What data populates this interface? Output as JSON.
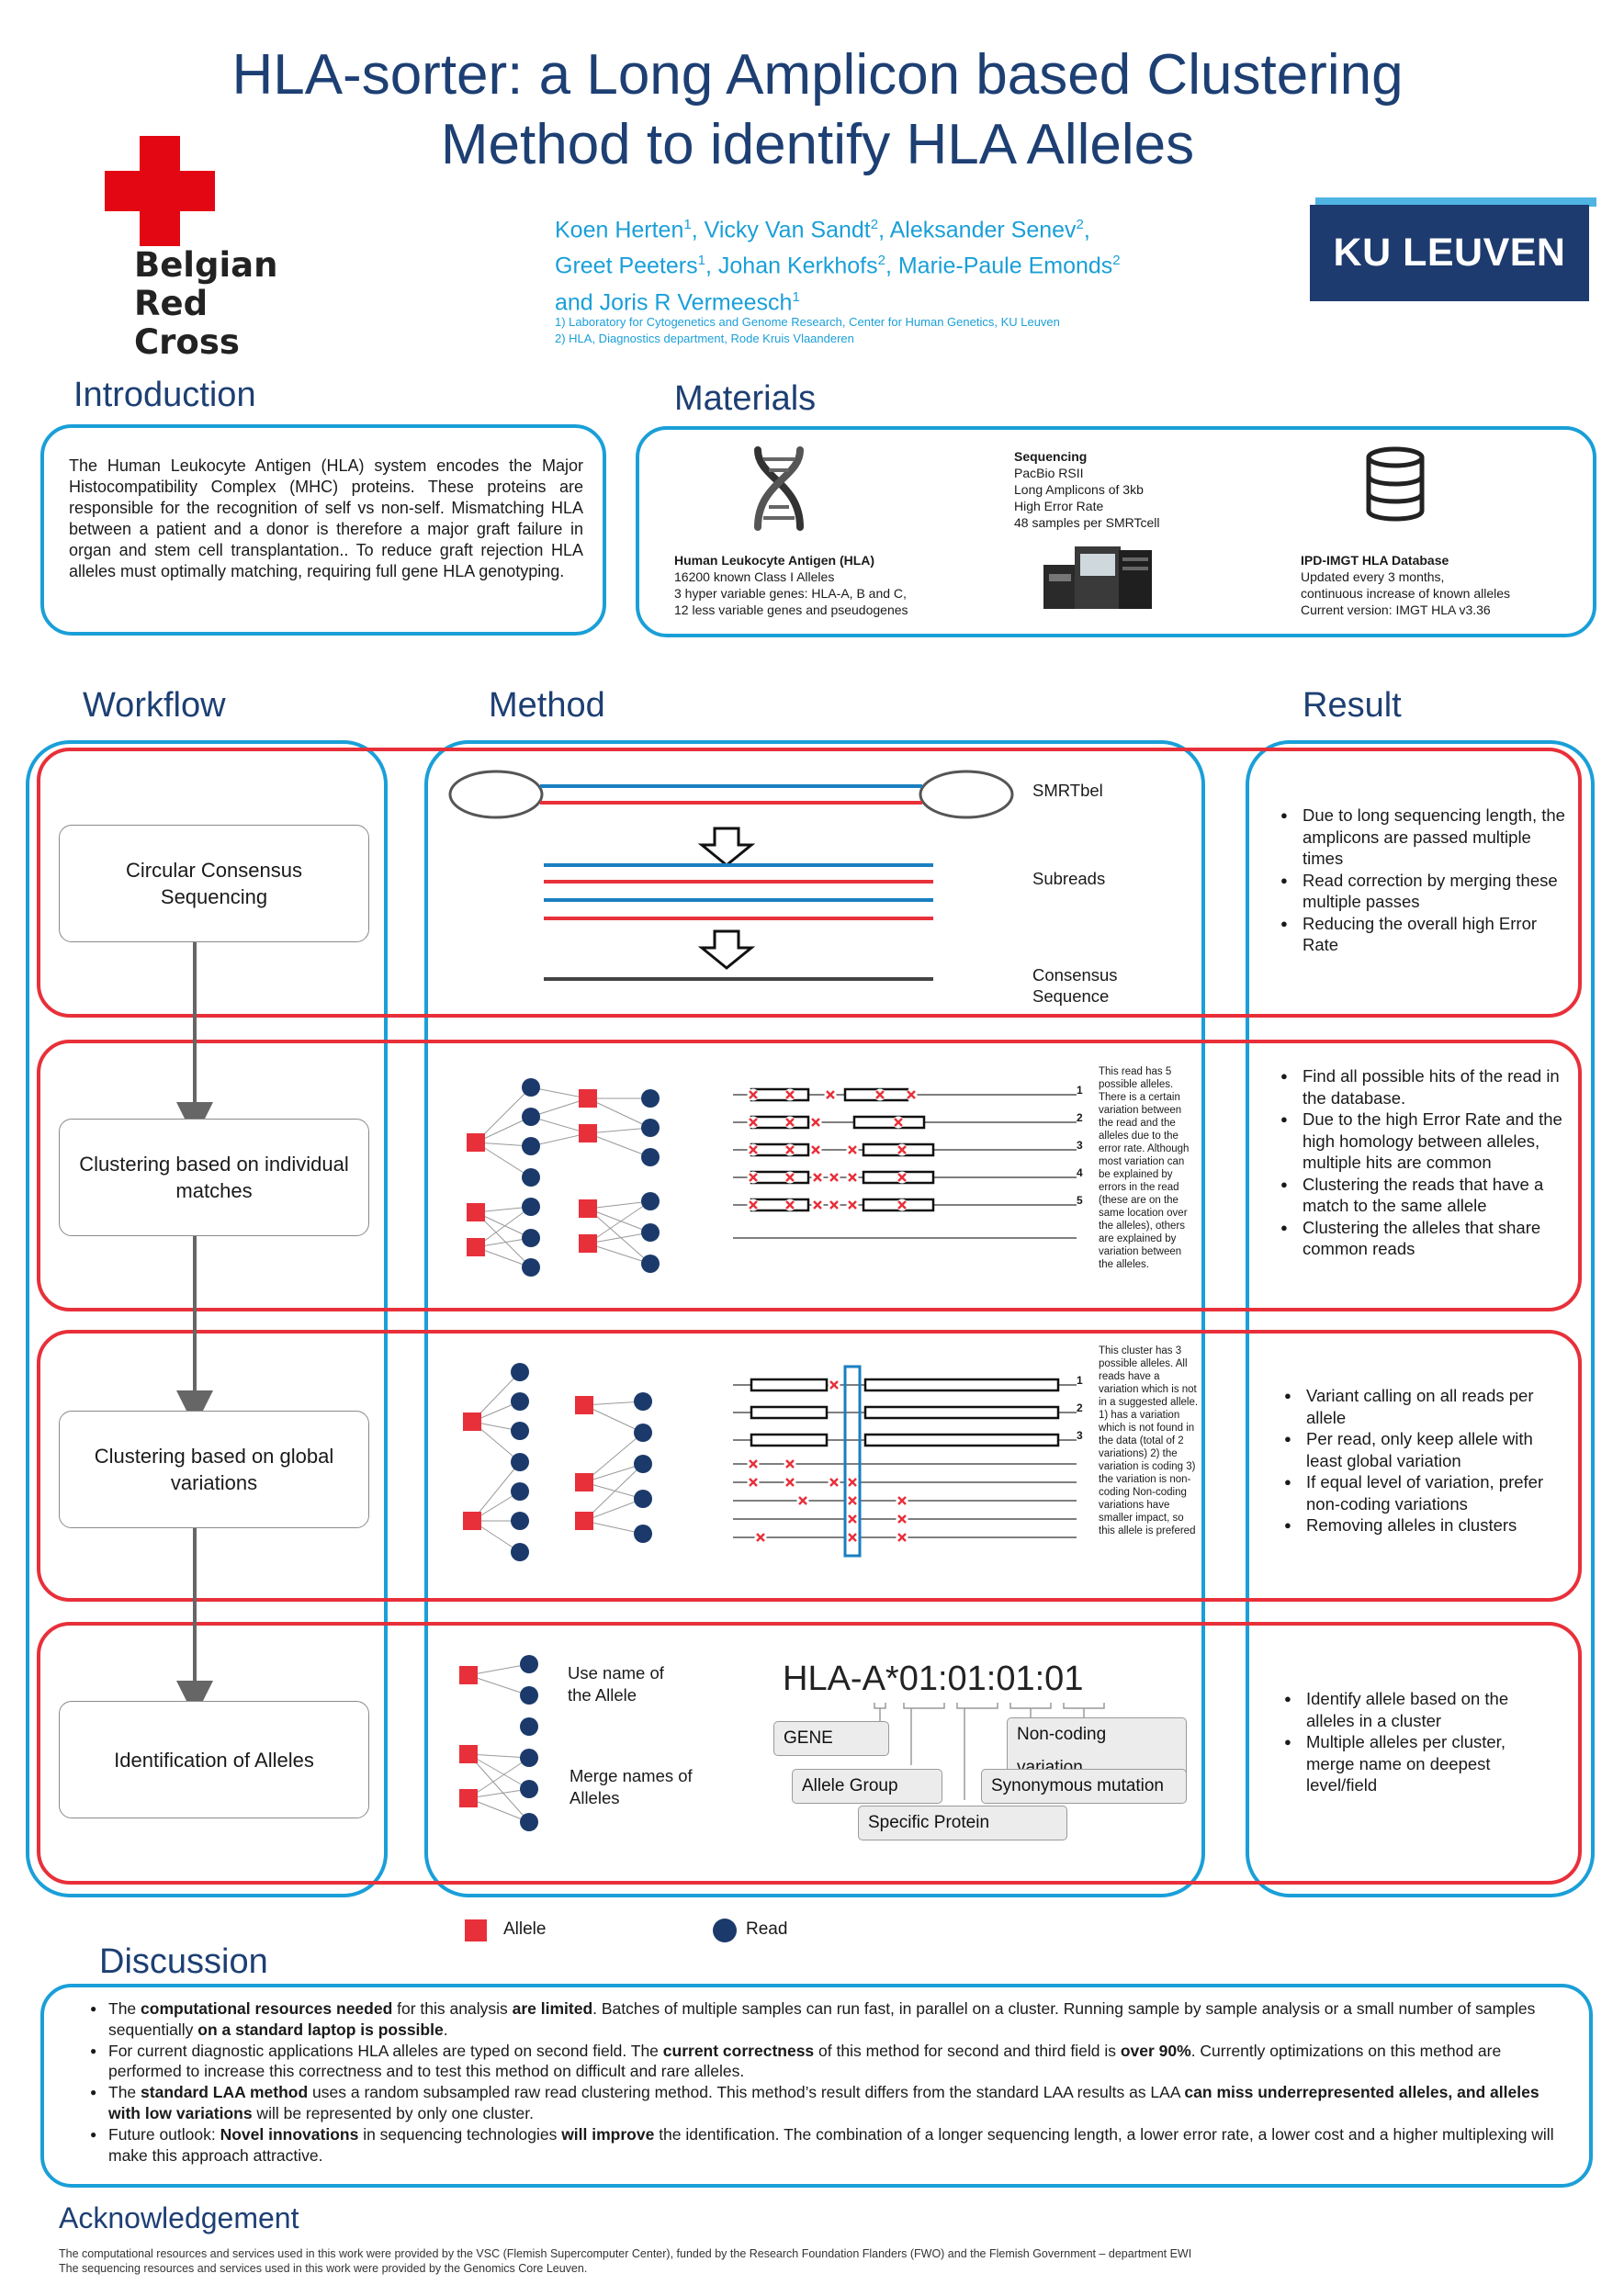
{
  "header": {
    "title_line1": "HLA-sorter: a Long Amplicon based Clustering",
    "title_line2": "Method to identify HLA Alleles",
    "authors": [
      {
        "name": "Koen Herten",
        "aff": "1",
        "sep": ", "
      },
      {
        "name": "Vicky Van Sandt",
        "aff": "2",
        "sep": ", "
      },
      {
        "name": "Aleksander Senev",
        "aff": "2",
        "sep": ","
      },
      {
        "name": "Greet Peeters",
        "aff": "1",
        "sep": ", "
      },
      {
        "name": "Johan Kerkhofs",
        "aff": "2",
        "sep": ", "
      },
      {
        "name": "Marie-Paule Emonds",
        "aff": "2",
        "sep": ""
      },
      {
        "name": "and Joris R Vermeesch",
        "aff": "1",
        "sep": ""
      }
    ],
    "affiliation_1": "1) Laboratory for Cytogenetics and Genome Research, Center for Human Genetics, KU Leuven",
    "affiliation_2": "2) HLA, Diagnostics department, Rode Kruis Vlaanderen",
    "logo_left_line1": "Belgian",
    "logo_left_line2": "Red Cross",
    "logo_right": "KU LEUVEN"
  },
  "introduction": {
    "heading": "Introduction",
    "text": "The Human Leukocyte Antigen (HLA) system encodes the Major Histocompatibility Complex (MHC) proteins. These proteins are responsible for the recognition of self vs non-self. Mismatching HLA between a patient and a donor is therefore a major graft failure in organ and stem cell transplantation.. To reduce graft rejection HLA alleles must optimally matching, requiring full gene HLA genotyping."
  },
  "materials": {
    "heading": "Materials",
    "hla": {
      "title": "Human Leukocyte Antigen (HLA)",
      "lines": [
        "16200 known Class I Alleles",
        "3 hyper variable genes: HLA-A, B and C,",
        "12 less variable genes and pseudogenes"
      ]
    },
    "sequencing": {
      "title": "Sequencing",
      "lines": [
        "PacBio RSII",
        "Long Amplicons of 3kb",
        "High Error Rate",
        "48 samples per SMRTcell"
      ]
    },
    "database": {
      "title": "IPD-IMGT HLA Database",
      "lines": [
        "Updated every 3 months,",
        "continuous increase of known alleles",
        "Current version: IMGT HLA v3.36"
      ]
    }
  },
  "section_headings": {
    "workflow": "Workflow",
    "method": "Method",
    "result": "Result"
  },
  "workflow": {
    "steps": [
      "Circular Consensus Sequencing",
      "Clustering based on individual matches",
      "Clustering based on global variations",
      "Identification of Alleles"
    ]
  },
  "method": {
    "ccs_labels": {
      "smrtbell": "SMRTbel",
      "subreads": "Subreads",
      "consensus": "Consensus Sequence"
    },
    "row_numbers": [
      "1",
      "2",
      "3",
      "4",
      "5"
    ],
    "row_numbers_global": [
      "1",
      "2",
      "3"
    ],
    "note_individual": "This read has 5 possible alleles. There is a certain variation between the read and the alleles due to the error rate. Although most variation can be explained by errors in the read (these are on the same location over the alleles), others are explained by variation between the alleles.",
    "note_global": "This cluster has 3 possible alleles. All reads have a variation which is not in a suggested allele. 1) has a variation which is not found in the data (total of 2 variations) 2) the variation is coding 3) the variation is non-coding Non-coding variations have smaller impact, so this allele is prefered",
    "identification": {
      "use_name": "Use name of the Allele",
      "merge_names": "Merge names of Alleles",
      "allele_name": "HLA-A*01:01:01:01",
      "parts": {
        "gene": "GENE",
        "allele_group": "Allele Group",
        "specific_protein": "Specific Protein",
        "non_coding": "Non-coding variation",
        "synonymous": "Synonymous mutation"
      }
    },
    "legend": {
      "allele": "Allele",
      "read": "Read"
    }
  },
  "results": [
    [
      "Due to long sequencing length, the amplicons are passed multiple times",
      "Read correction by merging these multiple passes",
      "Reducing the overall high Error Rate"
    ],
    [
      "Find all possible hits of the read in the database.",
      "Due to the high Error Rate and the high homology between alleles, multiple hits are common",
      "Clustering the reads that have a match to the same allele",
      "Clustering the alleles that share common reads"
    ],
    [
      "Variant calling on all reads per allele",
      "Per read, only keep allele with least global variation",
      "If equal level of variation, prefer non-coding variations",
      "Removing alleles in clusters"
    ],
    [
      "Identify allele based on the alleles in a cluster",
      "Multiple alleles per cluster, merge name on deepest level/field"
    ]
  ],
  "discussion": {
    "heading": "Discussion",
    "items": [
      [
        {
          "t": "The "
        },
        {
          "t": "computational resources needed",
          "b": true
        },
        {
          "t": " for this analysis "
        },
        {
          "t": "are limited",
          "b": true
        },
        {
          "t": ". Batches of multiple samples can run fast, in parallel on a cluster. Running sample by sample analysis or a small number of samples sequentially "
        },
        {
          "t": "on a standard laptop is possible",
          "b": true
        },
        {
          "t": "."
        }
      ],
      [
        {
          "t": "For current diagnostic applications HLA alleles are typed on second field. The "
        },
        {
          "t": "current correctness",
          "b": true
        },
        {
          "t": " of this method for second and third field is "
        },
        {
          "t": "over 90%",
          "b": true
        },
        {
          "t": ". Currently optimizations on this method are performed to increase this correctness and to test this method on difficult and rare alleles."
        }
      ],
      [
        {
          "t": "The "
        },
        {
          "t": "standard LAA method",
          "b": true
        },
        {
          "t": " uses a random subsampled raw read clustering method. This method’s result differs from the standard LAA results as LAA "
        },
        {
          "t": "can miss underrepresented alleles, and alleles with low variations",
          "b": true
        },
        {
          "t": " will be represented by only one cluster."
        }
      ],
      [
        {
          "t": "Future outlook: "
        },
        {
          "t": "Novel innovations",
          "b": true
        },
        {
          "t": " in sequencing technologies "
        },
        {
          "t": "will improve",
          "b": true
        },
        {
          "t": " the identification. The combination of a longer sequencing length, a lower error rate, a lower cost and a higher multiplexing will make this approach attractive."
        }
      ]
    ]
  },
  "acknowledgement": {
    "heading": "Acknowledgement",
    "line1": "The computational resources and services used in this work were provided by the VSC (Flemish Supercomputer Center), funded by the Research Foundation Flanders (FWO) and the Flemish Government – department EWI",
    "line2": "The sequencing resources and services used in this work were provided by the Genomics Core Leuven."
  },
  "colors": {
    "primary_blue": "#1a9fd8",
    "title_navy": "#1d3f73",
    "accent_red": "#e8303a",
    "read_navy": "#1b3a6b",
    "ku_navy": "#1d3b6e"
  },
  "icons": [
    "red-cross-icon",
    "dna-icon",
    "sequencer-icon",
    "database-icon",
    "down-arrow-icon",
    "mismatch-x-icon"
  ]
}
